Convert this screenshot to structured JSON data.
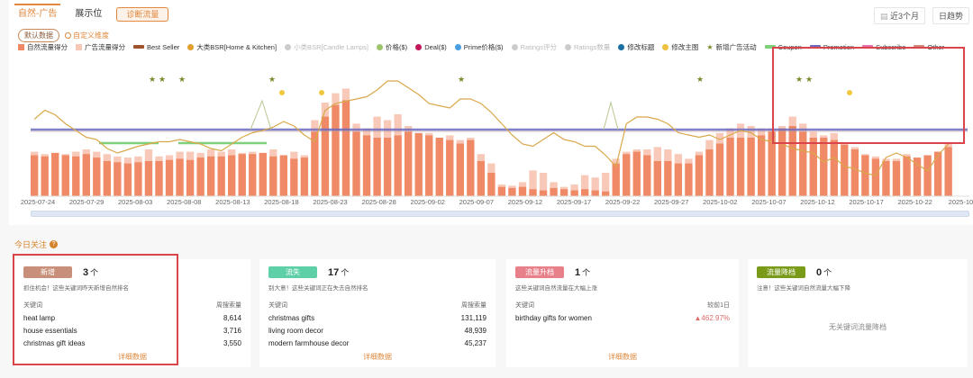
{
  "header": {
    "tabs": [
      {
        "label": "自然-广告",
        "active": true
      },
      {
        "label": "展示位",
        "active": false
      }
    ],
    "diagnose_button": "诊断流量",
    "date_range": "近3个月",
    "granularity": "日趋势",
    "calendar_icon": "calendar-icon"
  },
  "toolbar": {
    "default_data": "默认数据",
    "custom_metrics": "自定义维度"
  },
  "legend": [
    {
      "label": "自然流量得分",
      "type": "square",
      "color": "#f08a66",
      "muted": false
    },
    {
      "label": "广告流量得分",
      "type": "square",
      "color": "#f7c8b8",
      "muted": false
    },
    {
      "label": "Best Seller",
      "type": "bar",
      "color": "#a0522d",
      "muted": false
    },
    {
      "label": "大类BSR[Home & Kitchen]",
      "type": "dot",
      "color": "#e0a030",
      "muted": false
    },
    {
      "label": "小类BSR[Candle Lamps]",
      "type": "dot",
      "color": "#cccccc",
      "muted": true
    },
    {
      "label": "价格($)",
      "type": "dot",
      "color": "#9bc46c",
      "muted": false
    },
    {
      "label": "Deal($)",
      "type": "dot",
      "color": "#c2185b",
      "muted": false
    },
    {
      "label": "Prime价格($)",
      "type": "dot",
      "color": "#4a9ee0",
      "muted": false
    },
    {
      "label": "Ratings评分",
      "type": "dot",
      "color": "#cccccc",
      "muted": true
    },
    {
      "label": "Ratings数量",
      "type": "dot",
      "color": "#cccccc",
      "muted": true
    },
    {
      "label": "修改标题",
      "type": "dot",
      "color": "#1a6fa0",
      "muted": false
    },
    {
      "label": "修改主图",
      "type": "dot",
      "color": "#f0c040",
      "muted": false
    },
    {
      "label": "新增广告活动",
      "type": "star",
      "color": "#7a8a2a",
      "muted": false
    },
    {
      "label": "Coupon",
      "type": "bar",
      "color": "#7fd07a",
      "muted": false
    },
    {
      "label": "Promotion",
      "type": "bar",
      "color": "#6b6bc0",
      "muted": false
    },
    {
      "label": "Subscribe",
      "type": "bar",
      "color": "#e870b0",
      "muted": false
    },
    {
      "label": "Other",
      "type": "bar",
      "color": "#d08a7a",
      "muted": false
    }
  ],
  "chart_data": {
    "type": "bar",
    "title": "",
    "xlabel": "",
    "ylabel": "",
    "x_ticks": [
      "2025-07-24",
      "2025-07-29",
      "2025-08-03",
      "2025-08-08",
      "2025-08-13",
      "2025-08-18",
      "2025-08-23",
      "2025-08-28",
      "2025-09-02",
      "2025-09-07",
      "2025-09-12",
      "2025-09-17",
      "2025-09-22",
      "2025-09-27",
      "2025-10-02",
      "2025-10-07",
      "2025-10-12",
      "2025-10-17",
      "2025-10-22",
      "2025-10-2"
    ],
    "series": [
      {
        "name": "自然流量得分",
        "type": "bar",
        "values": [
          35,
          34,
          37,
          35,
          34,
          36,
          33,
          30,
          29,
          28,
          29,
          30,
          30,
          31,
          32,
          31,
          33,
          34,
          34,
          35,
          36,
          36,
          37,
          34,
          35,
          32,
          33,
          55,
          68,
          78,
          82,
          55,
          52,
          50,
          50,
          52,
          55,
          54,
          52,
          50,
          48,
          45,
          48,
          30,
          20,
          8,
          7,
          8,
          6,
          5,
          7,
          6,
          5,
          6,
          5,
          4,
          28,
          36,
          38,
          35,
          30,
          30,
          28,
          28,
          35,
          40,
          45,
          50,
          50,
          50,
          52,
          55,
          58,
          60,
          55,
          50,
          50,
          48,
          44,
          40,
          35,
          32,
          30,
          30,
          34,
          33,
          35,
          38,
          42
        ]
      },
      {
        "name": "广告流量得分",
        "type": "bar",
        "values": [
          38,
          36,
          37,
          36,
          38,
          40,
          38,
          36,
          34,
          33,
          34,
          40,
          34,
          35,
          38,
          38,
          37,
          40,
          38,
          40,
          37,
          38,
          37,
          40,
          34,
          38,
          35,
          65,
          80,
          88,
          92,
          62,
          58,
          68,
          65,
          70,
          60,
          52,
          54,
          50,
          52,
          48,
          50,
          36,
          28,
          10,
          9,
          12,
          22,
          20,
          12,
          8,
          10,
          18,
          16,
          20,
          32,
          38,
          40,
          40,
          42,
          40,
          36,
          32,
          38,
          48,
          54,
          58,
          62,
          60,
          58,
          58,
          60,
          68,
          62,
          55,
          52,
          54,
          46,
          42,
          36,
          34,
          32,
          32,
          36,
          33,
          35,
          38,
          45
        ]
      },
      {
        "name": "大类BSR[Home & Kitchen]",
        "type": "line",
        "values": [
          62,
          70,
          66,
          58,
          52,
          46,
          44,
          36,
          32,
          35,
          38,
          40,
          42,
          42,
          44,
          42,
          40,
          36,
          34,
          40,
          46,
          50,
          52,
          55,
          60,
          56,
          48,
          42,
          70,
          76,
          78,
          80,
          82,
          88,
          96,
          96,
          90,
          84,
          76,
          74,
          72,
          80,
          80,
          76,
          68,
          58,
          48,
          40,
          38,
          44,
          50,
          44,
          42,
          38,
          38,
          30,
          20,
          58,
          64,
          64,
          62,
          58,
          50,
          48,
          46,
          48,
          44,
          48,
          52,
          50,
          44,
          42,
          40,
          36,
          34,
          32,
          24,
          28,
          20,
          18,
          14,
          12,
          28,
          32,
          28,
          22,
          16,
          30,
          40
        ]
      }
    ],
    "markers": {
      "新增广告活动_stars": [
        "2025-08-02",
        "2025-08-03",
        "2025-08-05",
        "2025-08-14",
        "2025-09-02",
        "2025-09-27",
        "2025-10-08",
        "2025-10-09"
      ],
      "修改主图_dots": [
        "2025-08-15",
        "2025-08-19",
        "2025-10-13"
      ]
    },
    "horizontal_bands": [
      "Promotion",
      "Coupon",
      "Best Seller"
    ],
    "grid": false,
    "legend_position": "top"
  },
  "focus": {
    "title": "今日关注",
    "help_icon": "question-icon",
    "cards": [
      {
        "badge": "新增",
        "badge_color": "#c8907a",
        "count": "3",
        "unit": "个",
        "desc": "抓住机会！这些关键词昨天新增自然排名",
        "col_key": "关键词",
        "col_val": "周搜索量",
        "rows": [
          {
            "keyword": "heat lamp",
            "value": "8,614"
          },
          {
            "keyword": "house essentials",
            "value": "3,716"
          },
          {
            "keyword": "christmas gift ideas",
            "value": "3,550"
          }
        ],
        "detail": "详细数据",
        "empty": ""
      },
      {
        "badge": "流失",
        "badge_color": "#5ed0a8",
        "count": "17",
        "unit": "个",
        "desc": "别大意！这些关键词正在失去自然排名",
        "col_key": "关键词",
        "col_val": "周搜索量",
        "rows": [
          {
            "keyword": "christmas gifts",
            "value": "131,119"
          },
          {
            "keyword": "living room decor",
            "value": "48,939"
          },
          {
            "keyword": "modern farmhouse decor",
            "value": "45,237"
          }
        ],
        "detail": "详细数据",
        "empty": ""
      },
      {
        "badge": "流量升档",
        "badge_color": "#e8808a",
        "count": "1",
        "unit": "个",
        "desc": "这些关键词自然流量在大幅上涨",
        "col_key": "关键词",
        "col_val": "较前1日",
        "rows": [
          {
            "keyword": "birthday gifts for women",
            "value": "▲462.97%"
          }
        ],
        "detail": "详细数据",
        "empty": ""
      },
      {
        "badge": "流量降档",
        "badge_color": "#7a9a1a",
        "count": "0",
        "unit": "个",
        "desc": "注意！这些关键词自然流量大幅下降",
        "col_key": "",
        "col_val": "",
        "rows": [],
        "detail": "",
        "empty": "无关键词流量降档"
      }
    ]
  }
}
